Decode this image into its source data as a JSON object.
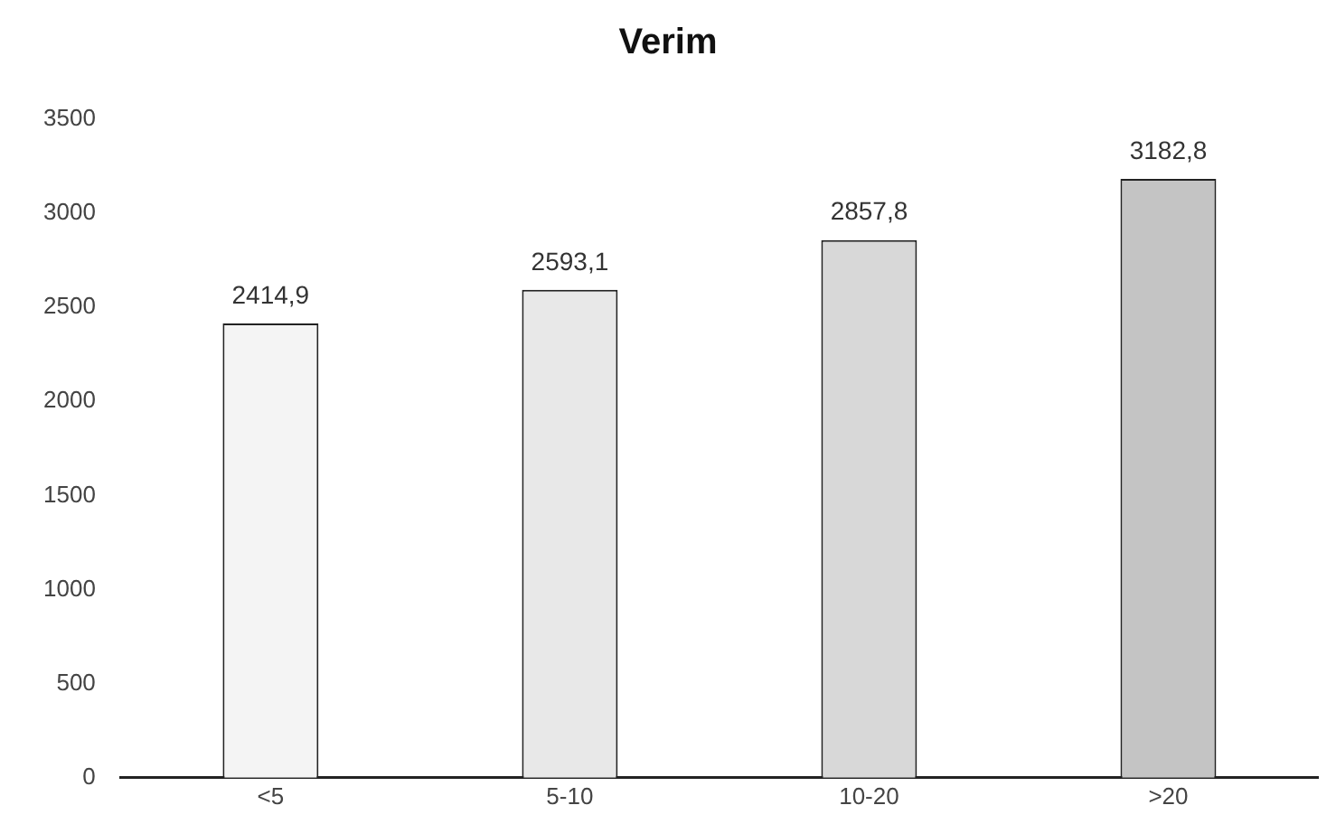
{
  "chart_data": {
    "type": "bar",
    "title": "Verim",
    "categories": [
      "<5",
      "5-10",
      "10-20",
      ">20"
    ],
    "values": [
      2414.9,
      2593.1,
      2857.8,
      3182.8
    ],
    "value_labels": [
      "2414,9",
      "2593,1",
      "2857,8",
      "3182,8"
    ],
    "colors": [
      "#f4f4f4",
      "#e8e8e8",
      "#d8d8d8",
      "#c4c4c4"
    ],
    "ylim": [
      0,
      3500
    ],
    "yticks": [
      0,
      500,
      1000,
      1500,
      2000,
      2500,
      3000,
      3500
    ],
    "grid": false,
    "legend": false
  }
}
